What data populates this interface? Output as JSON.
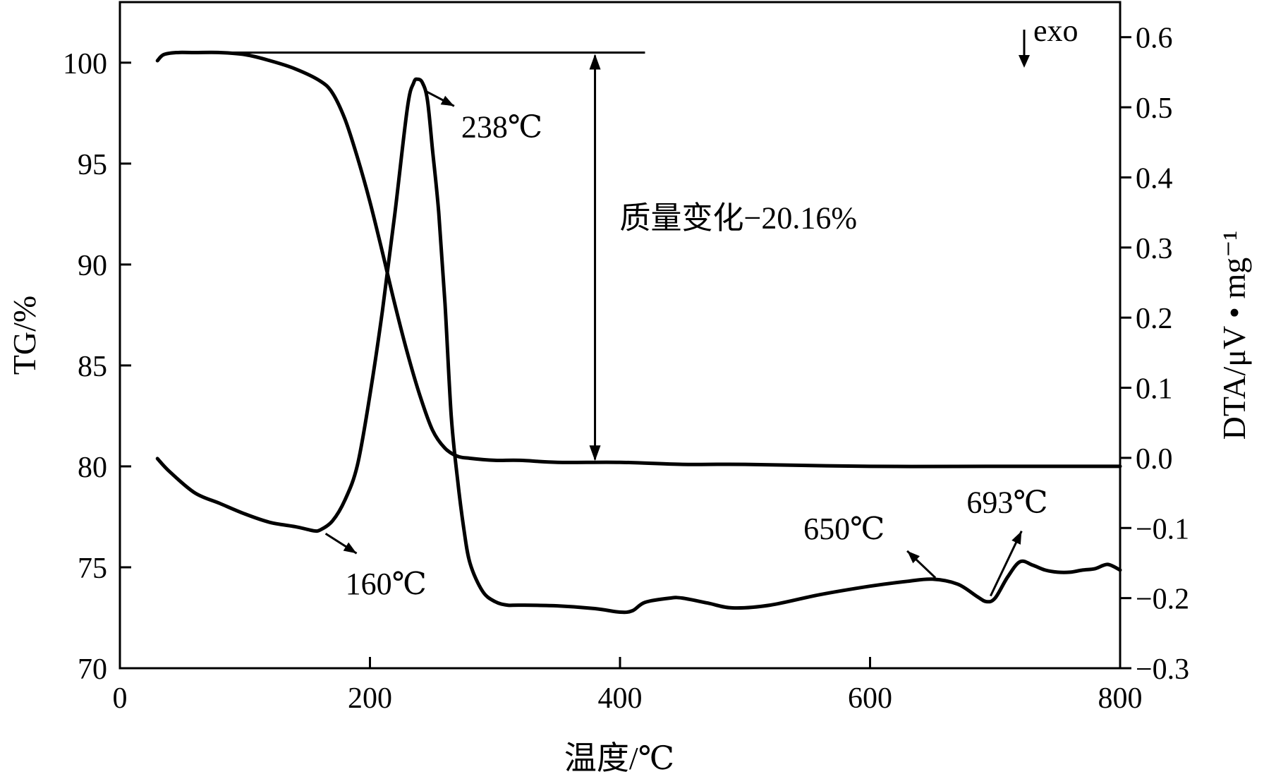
{
  "chart_data": {
    "type": "line",
    "xlabel": "温度/℃",
    "ylabel_left": "TG/%",
    "ylabel_right": "DTA/μV • mg⁻¹",
    "xlim": [
      0,
      800
    ],
    "ylim_left": [
      70,
      103
    ],
    "ylim_right": [
      -0.3,
      0.65
    ],
    "x_ticks": [
      0,
      200,
      400,
      600,
      800
    ],
    "y_left_ticks": [
      70,
      75,
      80,
      85,
      90,
      95,
      100
    ],
    "y_right_ticks": [
      -0.3,
      -0.2,
      -0.1,
      0.0,
      0.1,
      0.2,
      0.3,
      0.4,
      0.5,
      0.6
    ],
    "y_right_tick_labels": [
      "−0.3",
      "−0.2",
      "−0.1",
      "0.0",
      "0.1",
      "0.2",
      "0.3",
      "0.4",
      "0.5",
      "0.6"
    ],
    "legend_marker": "exo",
    "series": [
      {
        "axis": "left",
        "x": [
          30,
          35,
          45,
          60,
          80,
          100,
          120,
          140,
          160,
          170,
          180,
          190,
          200,
          210,
          220,
          230,
          240,
          250,
          260,
          270,
          280,
          300,
          320,
          350,
          400,
          450,
          500,
          600,
          700,
          800
        ],
        "y": [
          100.1,
          100.4,
          100.5,
          100.5,
          100.5,
          100.4,
          100.1,
          99.7,
          99.1,
          98.5,
          97.2,
          95.3,
          93.1,
          90.6,
          88.0,
          85.6,
          83.5,
          81.8,
          80.9,
          80.5,
          80.4,
          80.3,
          80.3,
          80.2,
          80.2,
          80.1,
          80.1,
          80.0,
          80.0,
          80.0
        ]
      },
      {
        "axis": "right",
        "x": [
          30,
          40,
          60,
          80,
          100,
          120,
          140,
          150,
          155,
          160,
          170,
          180,
          190,
          200,
          210,
          220,
          230,
          235,
          238,
          242,
          246,
          250,
          255,
          260,
          265,
          270,
          275,
          280,
          290,
          300,
          310,
          320,
          350,
          380,
          400,
          410,
          420,
          440,
          450,
          470,
          490,
          520,
          560,
          600,
          630,
          650,
          670,
          685,
          693,
          700,
          710,
          720,
          730,
          740,
          750,
          760,
          770,
          780,
          790,
          800
        ],
        "y": [
          -0.001,
          -0.02,
          -0.05,
          -0.065,
          -0.08,
          -0.092,
          -0.098,
          -0.102,
          -0.104,
          -0.103,
          -0.09,
          -0.06,
          -0.01,
          0.09,
          0.21,
          0.35,
          0.5,
          0.535,
          0.54,
          0.535,
          0.51,
          0.44,
          0.35,
          0.22,
          0.06,
          -0.03,
          -0.1,
          -0.15,
          -0.19,
          -0.205,
          -0.21,
          -0.21,
          -0.211,
          -0.215,
          -0.22,
          -0.218,
          -0.206,
          -0.2,
          -0.2,
          -0.207,
          -0.214,
          -0.21,
          -0.195,
          -0.183,
          -0.176,
          -0.173,
          -0.18,
          -0.197,
          -0.205,
          -0.2,
          -0.17,
          -0.148,
          -0.153,
          -0.16,
          -0.163,
          -0.163,
          -0.16,
          -0.158,
          -0.152,
          -0.16
        ]
      }
    ],
    "annotations": [
      {
        "text": "238℃",
        "x": 238,
        "axis": "right",
        "y": 0.54
      },
      {
        "text": "160℃",
        "x": 160,
        "axis": "right",
        "y": -0.104
      },
      {
        "text": "650℃",
        "x": 650,
        "axis": "right",
        "y": -0.173
      },
      {
        "text": "693℃",
        "x": 693,
        "axis": "right",
        "y": -0.205
      },
      {
        "text": "质量变化−20.16%",
        "x": 380,
        "axis": "left",
        "y_from": 100.5,
        "y_to": 80.2
      }
    ]
  }
}
